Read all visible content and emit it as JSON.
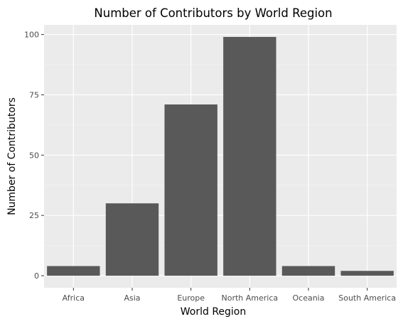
{
  "chart_data": {
    "type": "bar",
    "title": "Number of Contributors by World Region",
    "xlabel": "World Region",
    "ylabel": "Number of Contributors",
    "categories": [
      "Africa",
      "Asia",
      "Europe",
      "North America",
      "Oceania",
      "South America"
    ],
    "values": [
      4,
      30,
      71,
      99,
      4,
      2
    ],
    "ylim": [
      -5.0,
      104.0
    ],
    "yticks": [
      0,
      25,
      50,
      75,
      100
    ],
    "ytick_labels": [
      "0",
      "25",
      "50",
      "75",
      "100"
    ],
    "grid": true,
    "legend": "none",
    "colors": {
      "bar": "#595959",
      "panel": "#ebebeb",
      "grid_major": "#ffffff",
      "grid_minor": "#f5f5f5",
      "tick_text": "#4d4d4d"
    }
  }
}
